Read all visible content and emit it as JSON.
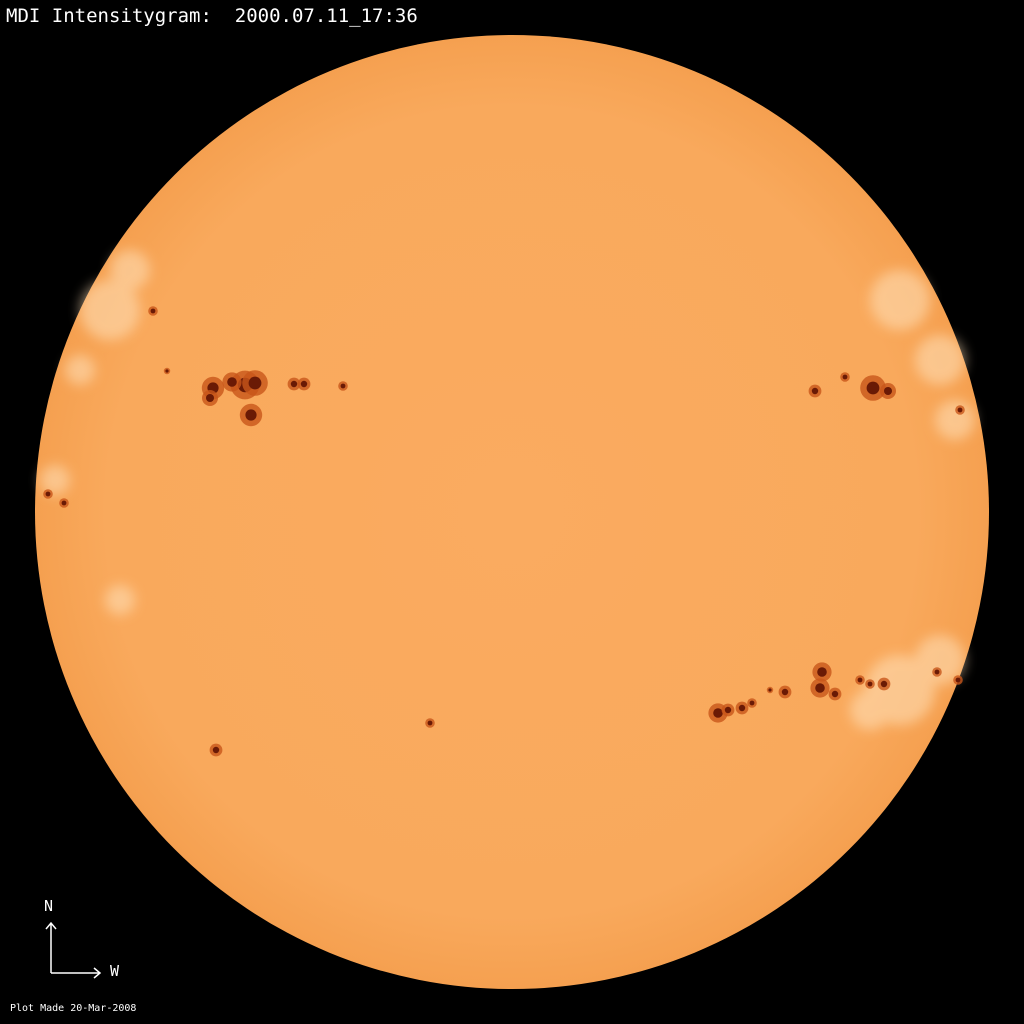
{
  "title": "MDI Intensitygram:  2000.07.11_17:36",
  "footer": "Plot Made 20-Mar-2008",
  "compass": {
    "north": "N",
    "west": "W"
  },
  "colors": {
    "background": "#000000",
    "disk": "#F9A95C",
    "umbra": "#6A1A05",
    "penumbra": "#C8561A",
    "faculae": "#FFE2BC"
  }
}
